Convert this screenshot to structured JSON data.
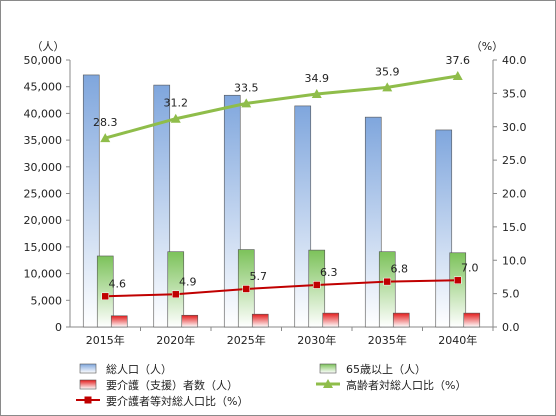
{
  "chart_data": {
    "type": "bar",
    "categories": [
      "2015年",
      "2020年",
      "2025年",
      "2030年",
      "2035年",
      "2040年"
    ],
    "y_left": {
      "unit": "（人）",
      "min": 0,
      "max": 50000,
      "step": 5000,
      "ticks": [
        "0",
        "5,000",
        "10,000",
        "15,000",
        "20,000",
        "25,000",
        "30,000",
        "35,000",
        "40,000",
        "45,000",
        "50,000"
      ]
    },
    "y_right": {
      "unit": "（%）",
      "min": 0,
      "max": 40,
      "step": 5,
      "ticks": [
        "0.0",
        "5.0",
        "10.0",
        "15.0",
        "20.0",
        "25.0",
        "30.0",
        "35.0",
        "40.0"
      ]
    },
    "bar_series": [
      {
        "name": "総人口（人）",
        "color": "#7fa6dd",
        "values": [
          47200,
          45300,
          43400,
          41400,
          39300,
          36900
        ]
      },
      {
        "name": "65歳以上（人）",
        "color": "#7cc25a",
        "values": [
          13300,
          14100,
          14500,
          14400,
          14100,
          13900
        ]
      },
      {
        "name": "要介護（支援）者数（人）",
        "color": "#e31c1c",
        "values": [
          2100,
          2200,
          2400,
          2600,
          2600,
          2600
        ]
      }
    ],
    "line_series": [
      {
        "name": "高齢者対総人口比（%）",
        "color": "#8fbd4a",
        "marker": "triangle",
        "values": [
          28.3,
          31.2,
          33.5,
          34.9,
          35.9,
          37.6
        ],
        "labels": [
          "28.3",
          "31.2",
          "33.5",
          "34.9",
          "35.9",
          "37.6"
        ]
      },
      {
        "name": "要介護者等対総人口比（%）",
        "color": "#c00000",
        "marker": "square",
        "values": [
          4.6,
          4.9,
          5.7,
          6.3,
          6.8,
          7.0
        ],
        "labels": [
          "4.6",
          "4.9",
          "5.7",
          "6.3",
          "6.8",
          "7.0"
        ]
      }
    ],
    "grid": false,
    "legend_position": "bottom"
  }
}
